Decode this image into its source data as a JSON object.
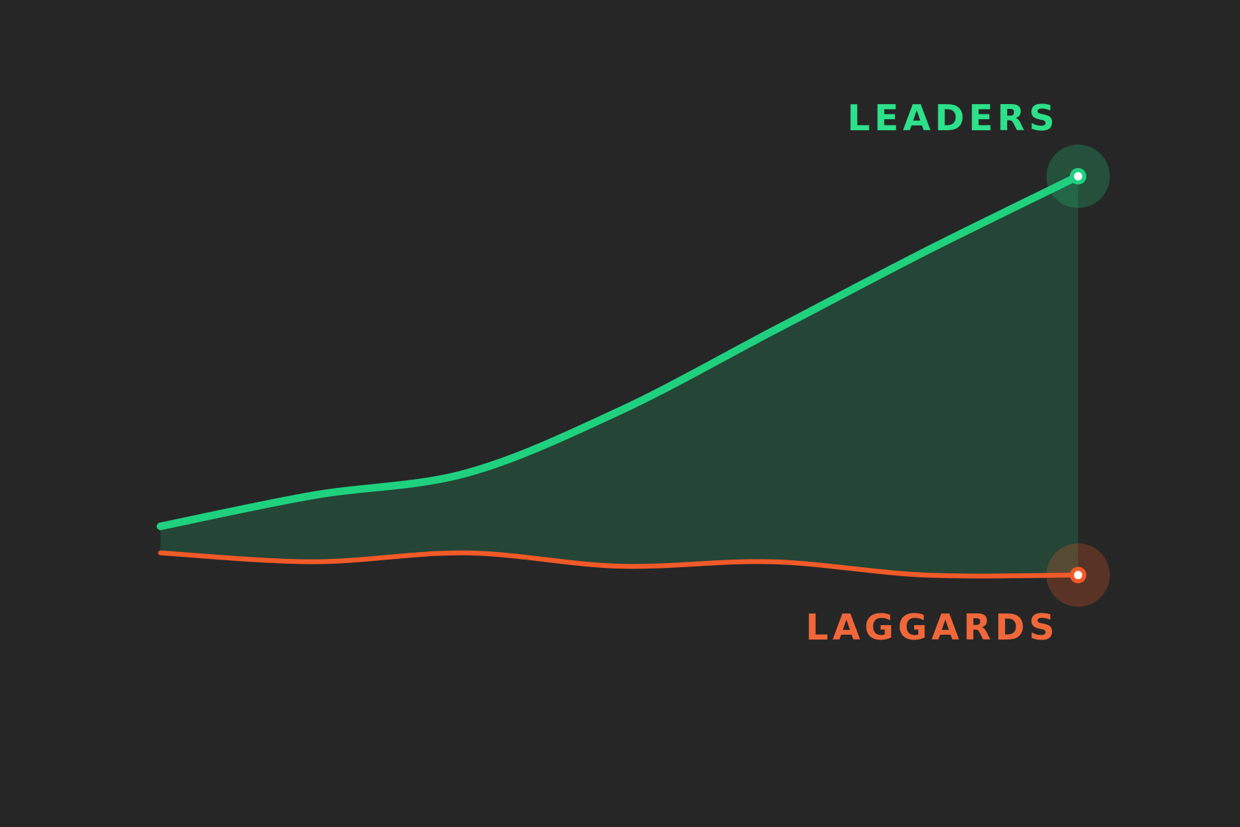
{
  "chart_data": {
    "type": "line",
    "categories": [
      null,
      null,
      null,
      null,
      null,
      null,
      null
    ],
    "series": [
      {
        "name": "LEADERS",
        "color": "#1fd17f",
        "values": [
          17,
          24,
          29,
          43,
          61,
          79,
          96
        ]
      },
      {
        "name": "LAGGARDS",
        "color": "#f05a28",
        "values": [
          11,
          9,
          11,
          8,
          9,
          6,
          6
        ]
      }
    ],
    "ylim": [
      0,
      100
    ],
    "grid": false
  }
}
